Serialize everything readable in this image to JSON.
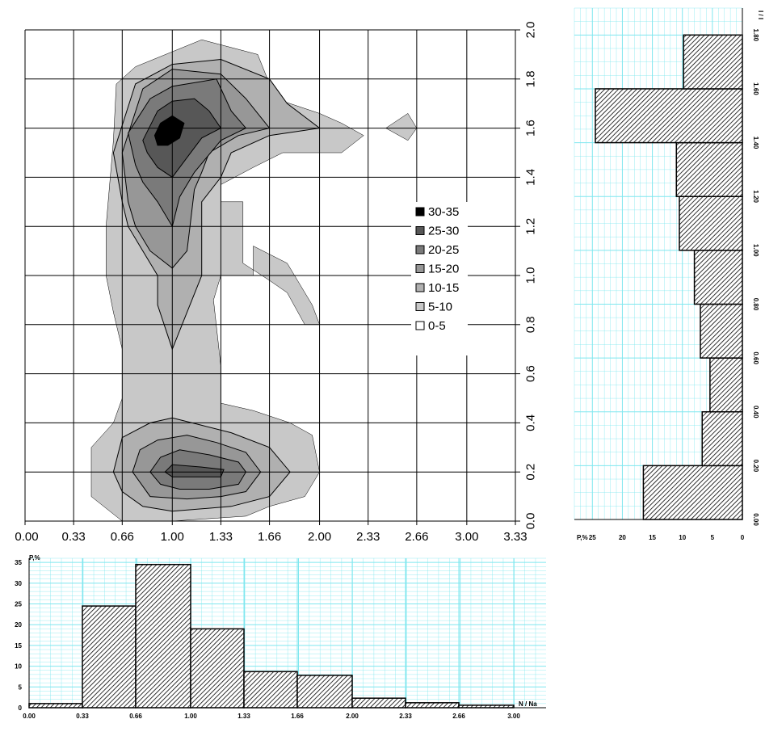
{
  "colors": {
    "level_30_35": "#000000",
    "level_25_30": "#575757",
    "level_20_25": "#7a7a7a",
    "level_15_20": "#979797",
    "level_10_15": "#b0b0b0",
    "level_5_10": "#c8c8c8",
    "level_0_5": "#ffffff",
    "histogram_grid": "#7fe7ef",
    "histogram_hatch": "#000000"
  },
  "chart_data": [
    {
      "type": "heatmap",
      "title": "",
      "xlabel": "",
      "ylabel": "",
      "x_ticks": [
        "0.00",
        "0.33",
        "0.66",
        "1.00",
        "1.33",
        "1.66",
        "2.00",
        "2.33",
        "2.66",
        "3.00",
        "3.33"
      ],
      "y_ticks": [
        "0.0",
        "0.2",
        "0.4",
        "0.6",
        "0.8",
        "1.0",
        "1.2",
        "1.4",
        "1.6",
        "1.8",
        "2.0"
      ],
      "xlim": [
        0,
        3.33
      ],
      "ylim": [
        0,
        2.0
      ],
      "grid": true,
      "legend_position": "right",
      "legend": [
        "30-35",
        "25-30",
        "20-25",
        "15-20",
        "10-15",
        "5-10",
        "0-5"
      ],
      "contours": [
        {
          "level": "5-10",
          "points": [
            [
              0.6,
              1.55
            ],
            [
              0.62,
              1.78
            ],
            [
              0.75,
              1.85
            ],
            [
              1.2,
              1.96
            ],
            [
              1.58,
              1.9
            ],
            [
              1.7,
              1.72
            ],
            [
              2.0,
              1.66
            ],
            [
              2.15,
              1.62
            ],
            [
              2.3,
              1.57
            ],
            [
              2.15,
              1.5
            ],
            [
              1.75,
              1.5
            ],
            [
              1.55,
              1.44
            ],
            [
              1.33,
              1.37
            ],
            [
              1.33,
              1.3
            ],
            [
              1.48,
              1.3
            ],
            [
              1.48,
              1.05
            ],
            [
              1.66,
              0.98
            ],
            [
              1.78,
              0.93
            ],
            [
              1.9,
              0.8
            ],
            [
              2.0,
              0.8
            ],
            [
              1.95,
              0.88
            ],
            [
              1.78,
              1.05
            ],
            [
              1.55,
              1.12
            ],
            [
              1.55,
              1.0
            ],
            [
              1.33,
              1.0
            ],
            [
              1.28,
              0.9
            ],
            [
              1.33,
              0.63
            ],
            [
              1.33,
              0.48
            ],
            [
              1.55,
              0.45
            ],
            [
              1.8,
              0.4
            ],
            [
              1.95,
              0.35
            ],
            [
              2.0,
              0.2
            ],
            [
              1.9,
              0.1
            ],
            [
              1.66,
              0.06
            ],
            [
              1.5,
              0.02
            ],
            [
              1.0,
              0.0
            ],
            [
              0.66,
              0.0
            ],
            [
              0.45,
              0.1
            ],
            [
              0.45,
              0.3
            ],
            [
              0.6,
              0.4
            ],
            [
              0.66,
              0.5
            ],
            [
              0.66,
              0.7
            ],
            [
              0.6,
              0.85
            ],
            [
              0.55,
              1.0
            ],
            [
              0.55,
              1.2
            ]
          ]
        },
        {
          "level": "5-10",
          "points": [
            [
              2.45,
              1.6
            ],
            [
              2.6,
              1.66
            ],
            [
              2.66,
              1.6
            ],
            [
              2.6,
              1.55
            ]
          ]
        },
        {
          "level": "10-15",
          "points": [
            [
              0.6,
              1.5
            ],
            [
              0.75,
              1.78
            ],
            [
              1.0,
              1.86
            ],
            [
              1.33,
              1.88
            ],
            [
              1.66,
              1.8
            ],
            [
              1.78,
              1.7
            ],
            [
              2.0,
              1.6
            ],
            [
              1.66,
              1.57
            ],
            [
              1.4,
              1.5
            ],
            [
              1.33,
              1.4
            ],
            [
              1.2,
              1.3
            ],
            [
              1.2,
              1.2
            ],
            [
              1.2,
              1.0
            ],
            [
              1.1,
              0.85
            ],
            [
              1.0,
              0.7
            ],
            [
              0.9,
              0.88
            ],
            [
              0.9,
              1.0
            ],
            [
              0.8,
              1.1
            ],
            [
              0.7,
              1.2
            ],
            [
              0.66,
              1.3
            ]
          ]
        },
        {
          "level": "15-20",
          "points": [
            [
              0.66,
              1.5
            ],
            [
              0.8,
              1.76
            ],
            [
              1.0,
              1.84
            ],
            [
              1.33,
              1.82
            ],
            [
              1.5,
              1.72
            ],
            [
              1.66,
              1.6
            ],
            [
              1.45,
              1.57
            ],
            [
              1.25,
              1.5
            ],
            [
              1.2,
              1.42
            ],
            [
              1.15,
              1.35
            ],
            [
              1.12,
              1.2
            ],
            [
              1.1,
              1.1
            ],
            [
              1.0,
              1.03
            ],
            [
              0.85,
              1.1
            ],
            [
              0.75,
              1.2
            ],
            [
              0.7,
              1.3
            ]
          ]
        },
        {
          "level": "20-25",
          "points": [
            [
              0.7,
              1.58
            ],
            [
              0.85,
              1.72
            ],
            [
              1.0,
              1.77
            ],
            [
              1.3,
              1.8
            ],
            [
              1.4,
              1.67
            ],
            [
              1.5,
              1.6
            ],
            [
              1.33,
              1.55
            ],
            [
              1.15,
              1.42
            ],
            [
              1.05,
              1.32
            ],
            [
              1.0,
              1.2
            ],
            [
              0.9,
              1.3
            ],
            [
              0.8,
              1.38
            ],
            [
              0.75,
              1.45
            ]
          ]
        },
        {
          "level": "25-30",
          "points": [
            [
              0.8,
              1.55
            ],
            [
              0.9,
              1.67
            ],
            [
              1.0,
              1.71
            ],
            [
              1.15,
              1.72
            ],
            [
              1.25,
              1.67
            ],
            [
              1.33,
              1.6
            ],
            [
              1.2,
              1.56
            ],
            [
              1.1,
              1.48
            ],
            [
              1.0,
              1.4
            ],
            [
              0.9,
              1.44
            ],
            [
              0.83,
              1.5
            ]
          ]
        },
        {
          "level": "30-35",
          "points": [
            [
              0.88,
              1.57
            ],
            [
              0.92,
              1.62
            ],
            [
              1.0,
              1.65
            ],
            [
              1.08,
              1.62
            ],
            [
              1.05,
              1.56
            ],
            [
              0.97,
              1.53
            ],
            [
              0.9,
              1.53
            ]
          ]
        },
        {
          "level": "10-15",
          "points": [
            [
              0.6,
              0.2
            ],
            [
              0.66,
              0.34
            ],
            [
              0.85,
              0.4
            ],
            [
              1.0,
              0.42
            ],
            [
              1.2,
              0.39
            ],
            [
              1.4,
              0.36
            ],
            [
              1.66,
              0.3
            ],
            [
              1.8,
              0.2
            ],
            [
              1.66,
              0.1
            ],
            [
              1.4,
              0.06
            ],
            [
              1.0,
              0.04
            ],
            [
              0.8,
              0.06
            ],
            [
              0.66,
              0.12
            ]
          ]
        },
        {
          "level": "15-20",
          "points": [
            [
              0.73,
              0.2
            ],
            [
              0.78,
              0.29
            ],
            [
              0.9,
              0.33
            ],
            [
              1.1,
              0.35
            ],
            [
              1.3,
              0.32
            ],
            [
              1.5,
              0.28
            ],
            [
              1.6,
              0.2
            ],
            [
              1.5,
              0.12
            ],
            [
              1.33,
              0.1
            ],
            [
              1.1,
              0.09
            ],
            [
              0.85,
              0.1
            ]
          ]
        },
        {
          "level": "20-25",
          "points": [
            [
              0.85,
              0.2
            ],
            [
              0.92,
              0.26
            ],
            [
              1.05,
              0.29
            ],
            [
              1.25,
              0.27
            ],
            [
              1.45,
              0.24
            ],
            [
              1.5,
              0.2
            ],
            [
              1.45,
              0.15
            ],
            [
              1.25,
              0.13
            ],
            [
              1.05,
              0.13
            ],
            [
              0.92,
              0.15
            ]
          ]
        },
        {
          "level": "25-30",
          "points": [
            [
              0.95,
              0.2
            ],
            [
              1.0,
              0.23
            ],
            [
              1.2,
              0.22
            ],
            [
              1.35,
              0.21
            ],
            [
              1.33,
              0.18
            ],
            [
              1.15,
              0.18
            ],
            [
              1.0,
              0.18
            ]
          ]
        }
      ]
    },
    {
      "type": "bar",
      "title": "",
      "xlabel": "N / Na",
      "ylabel": "P,%",
      "x_ticks": [
        "0.00",
        "0.33",
        "0.66",
        "1.00",
        "1.33",
        "1.66",
        "2.00",
        "2.33",
        "2.66",
        "3.00"
      ],
      "y_ticks": [
        "0",
        "5",
        "10",
        "15",
        "20",
        "25",
        "30",
        "35"
      ],
      "bin_edges": [
        0,
        0.33,
        0.66,
        1.0,
        1.33,
        1.66,
        2.0,
        2.33,
        2.66,
        3.0
      ],
      "values": [
        1.0,
        24.5,
        34.5,
        19.0,
        8.7,
        7.8,
        2.3,
        1.2,
        0.6
      ],
      "xlim": [
        0,
        3.2
      ],
      "ylim": [
        0,
        36
      ],
      "grid": true
    },
    {
      "type": "bar",
      "title": "",
      "orientation": "horizontal",
      "xlabel": "P,%",
      "ylabel": "I / I",
      "x_ticks": [
        "25",
        "20",
        "15",
        "10",
        "5",
        "0"
      ],
      "y_ticks": [
        "0.00",
        "0.20",
        "0.40",
        "0.60",
        "0.80",
        "1.00",
        "1.20",
        "1.40",
        "1.60",
        "1.80"
      ],
      "bin_edges": [
        0,
        0.2,
        0.4,
        0.6,
        0.8,
        1.0,
        1.2,
        1.4,
        1.6,
        1.8
      ],
      "values": [
        16.5,
        6.7,
        5.4,
        7.0,
        8.0,
        10.5,
        11.0,
        24.5,
        9.8
      ],
      "xlim": [
        28,
        0
      ],
      "ylim": [
        0,
        1.9
      ],
      "grid": true
    }
  ]
}
